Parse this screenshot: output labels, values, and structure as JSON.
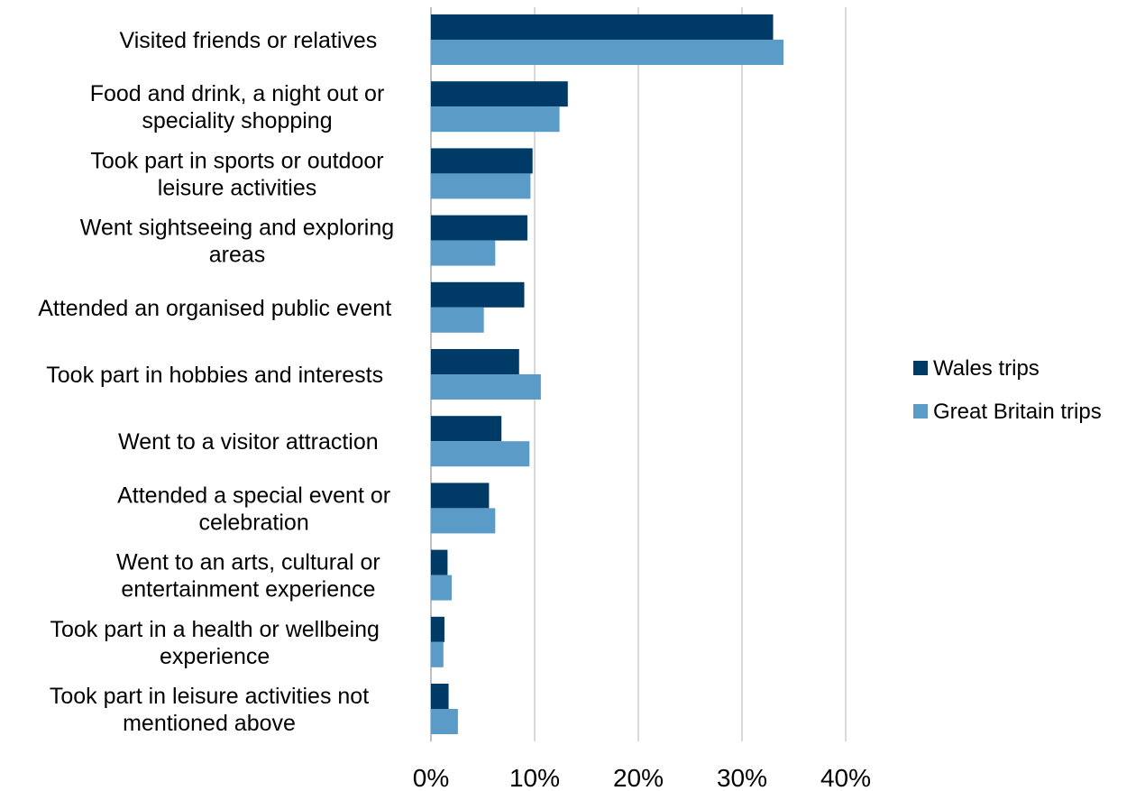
{
  "chart_data": {
    "type": "bar",
    "orientation": "horizontal",
    "categories": [
      [
        "Visited friends or relatives"
      ],
      [
        "Food and drink, a night out or",
        "speciality shopping"
      ],
      [
        "Took part in sports or outdoor",
        "leisure activities"
      ],
      [
        "Went sightseeing and exploring",
        "areas"
      ],
      [
        "Attended an organised public event"
      ],
      [
        "Took part in hobbies and interests"
      ],
      [
        "Went to a visitor attraction"
      ],
      [
        "Attended a special event or",
        "celebration"
      ],
      [
        "Went to an arts, cultural or",
        "entertainment experience"
      ],
      [
        "Took part in a health or wellbeing",
        "experience"
      ],
      [
        "Took part in leisure activities not",
        "mentioned above"
      ]
    ],
    "series": [
      {
        "name": "Wales trips",
        "color": "#003a66",
        "values": [
          33,
          13.2,
          9.8,
          9.3,
          9.0,
          8.5,
          6.8,
          5.6,
          1.6,
          1.3,
          1.7
        ]
      },
      {
        "name": "Great Britain trips",
        "color": "#5b9bc8",
        "values": [
          34,
          12.4,
          9.6,
          6.2,
          5.1,
          10.6,
          9.5,
          6.2,
          2.0,
          1.2,
          2.6
        ]
      }
    ],
    "xlim": [
      0,
      40
    ],
    "xticks": [
      "0%",
      "10%",
      "20%",
      "30%",
      "40%"
    ],
    "grid": true,
    "legend_position": "right"
  }
}
